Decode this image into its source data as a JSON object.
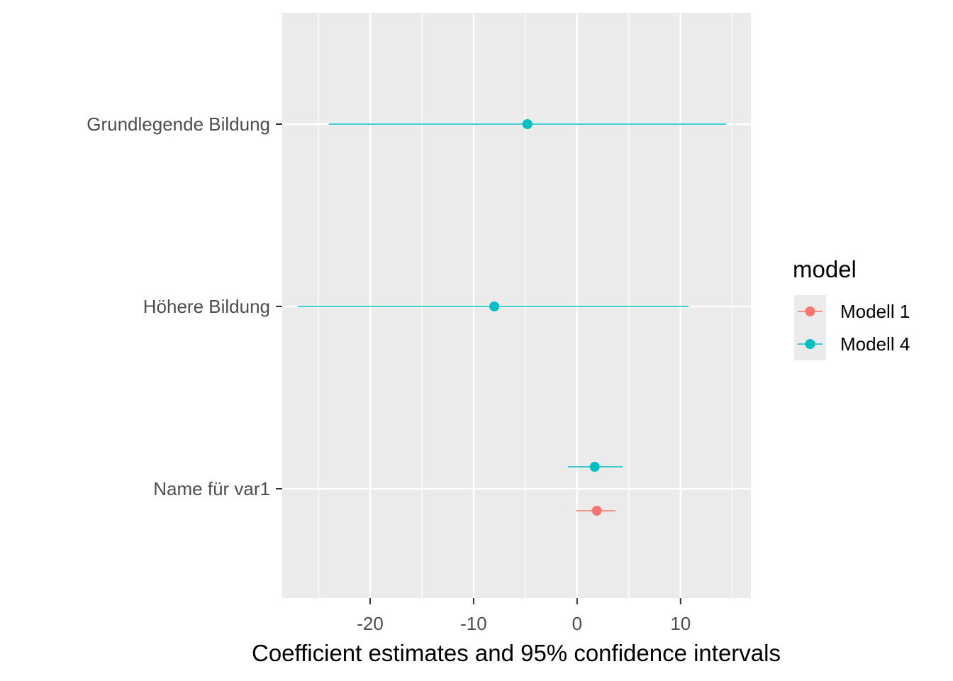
{
  "chart_data": {
    "type": "coefficient-plot",
    "xlabel": "Coefficient estimates and 95% confidence intervals",
    "xlim": [
      -28.5,
      16.8
    ],
    "x_ticks": [
      -20,
      -10,
      0,
      10
    ],
    "x_tick_labels": [
      "-20",
      "-10",
      "0",
      "10"
    ],
    "categories": [
      "Grundlegende Bildung",
      "Höhere Bildung",
      "Name für var1"
    ],
    "legend": {
      "title": "model",
      "placement": "right"
    },
    "grid": true,
    "panel_background": "#ebebeb",
    "series": [
      {
        "name": "Modell 1",
        "color": "#f8766d",
        "points": [
          {
            "category": "Name für var1",
            "estimate": 1.9,
            "low": -0.1,
            "high": 3.7
          }
        ]
      },
      {
        "name": "Modell 4",
        "color": "#00bfc4",
        "points": [
          {
            "category": "Grundlegende Bildung",
            "estimate": -4.8,
            "low": -24.0,
            "high": 14.4
          },
          {
            "category": "Höhere Bildung",
            "estimate": -8.0,
            "low": -27.0,
            "high": 10.8
          },
          {
            "category": "Name für var1",
            "estimate": 1.7,
            "low": -0.9,
            "high": 4.4
          }
        ]
      }
    ]
  }
}
